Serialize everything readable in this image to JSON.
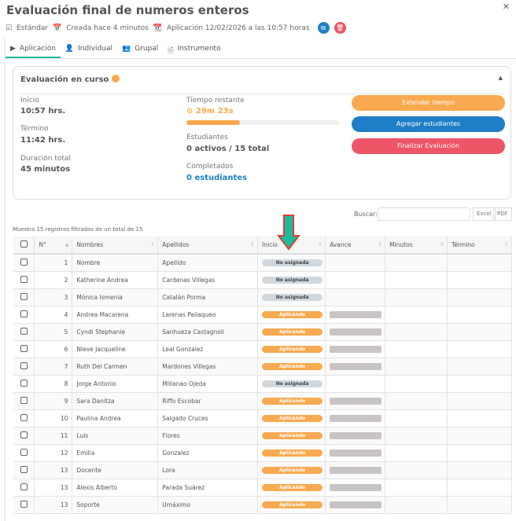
{
  "title": "Evaluación final de numeros enteros",
  "meta": {
    "type": "Estándar",
    "created": "Creada hace 4 minutos",
    "application": "Aplicación 12/02/2026 a las 10:57 horas"
  },
  "colors": {
    "accent": "#1abc9c",
    "orange": "#f9a94f",
    "blue": "#1e7fc6",
    "red": "#ee5566"
  },
  "tabs": [
    {
      "label": "Aplicación",
      "icon": "play-icon"
    },
    {
      "label": "Individual",
      "icon": "user-icon"
    },
    {
      "label": "Grupal",
      "icon": "users-icon"
    },
    {
      "label": "Instrumento",
      "icon": "document-icon"
    }
  ],
  "card": {
    "title": "Evaluación en curso",
    "inicio_label": "Inicio",
    "inicio": "10:57 hrs.",
    "termino_label": "Término",
    "termino": "11:42 hrs.",
    "duracion_label": "Duración total",
    "duracion": "45 minutos",
    "tiempo_label": "Tiempo restante",
    "tiempo": "29m 23s",
    "tiempo_progress_percent": 35,
    "estudiantes_label": "Estudiantes",
    "estudiantes": "0 activos / 15 total",
    "completados_label": "Completados",
    "completados": "0 estudiantes",
    "btn_extend": "Extender tiempo",
    "btn_add": "Agregar estudiantes",
    "btn_finish": "Finalizar Evaluación"
  },
  "table": {
    "search_label": "Buscar:",
    "search_value": "",
    "excel": "Excel",
    "pdf": "PDF",
    "count": "Muestra 15 registros filtrados de un total de 15",
    "headers": [
      "N°",
      "Nombres",
      "Apellidos",
      "Inicio",
      "Avance",
      "Minutos",
      "Término"
    ],
    "rows": [
      {
        "n": "1",
        "nombre": "Nombre",
        "apellido": "Apellido",
        "inicio": "No asignada"
      },
      {
        "n": "2",
        "nombre": "Katherine Andrea",
        "apellido": "Cardenas Villegas",
        "inicio": "No asignada"
      },
      {
        "n": "3",
        "nombre": "Mónica Ismenia",
        "apellido": "Catalán Porma",
        "inicio": "No asignada"
      },
      {
        "n": "4",
        "nombre": "Andrea Macarena",
        "apellido": "Larenas Pailaqueo",
        "inicio": "Aplicando"
      },
      {
        "n": "5",
        "nombre": "Cyndi Stephanie",
        "apellido": "Sanhueza Castagnoli",
        "inicio": "Aplicando"
      },
      {
        "n": "6",
        "nombre": "Nieve Jacqueline",
        "apellido": "Leal Gonzalez",
        "inicio": "Aplicando"
      },
      {
        "n": "7",
        "nombre": "Ruth Del Carmen",
        "apellido": "Mardones Villegas",
        "inicio": "Aplicando"
      },
      {
        "n": "8",
        "nombre": "Jorge Antonio",
        "apellido": "Millanao Ojeda",
        "inicio": "No asignada"
      },
      {
        "n": "9",
        "nombre": "Sara Danitza",
        "apellido": "Riffo Escobar",
        "inicio": "Aplicando"
      },
      {
        "n": "10",
        "nombre": "Paulina Andrea",
        "apellido": "Salgado Cruces",
        "inicio": "Aplicando"
      },
      {
        "n": "11",
        "nombre": "Luis",
        "apellido": "Flores",
        "inicio": "Aplicando"
      },
      {
        "n": "12",
        "nombre": "Emilia",
        "apellido": "Gonzalez",
        "inicio": "Aplicando"
      },
      {
        "n": "13",
        "nombre": "Docente",
        "apellido": "Lora",
        "inicio": "Aplicando"
      },
      {
        "n": "13",
        "nombre": "Alexis Alberto",
        "apellido": "Parada Suárez",
        "inicio": "Aplicando"
      },
      {
        "n": "13",
        "nombre": "Soporte",
        "apellido": "Umáximo",
        "inicio": "Aplicando"
      }
    ]
  }
}
